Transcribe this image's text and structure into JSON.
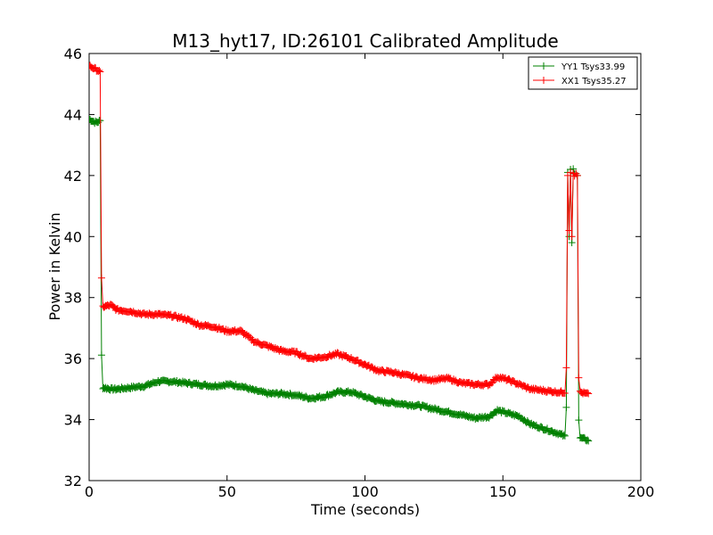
{
  "chart_data": {
    "type": "line",
    "title": "M13_hyt17, ID:26101 Calibrated Amplitude",
    "xlabel": "Time (seconds)",
    "ylabel": "Power in Kelvin",
    "xlim": [
      0,
      200
    ],
    "ylim": [
      32,
      46
    ],
    "x_ticks": [
      "0",
      "50",
      "100",
      "150",
      "200"
    ],
    "y_ticks": [
      "32",
      "34",
      "36",
      "38",
      "40",
      "42",
      "44",
      "46"
    ],
    "grid": false,
    "legend_position": "top-right",
    "colors": {
      "yy1": "#008000",
      "xx1": "#ff0000"
    },
    "series": [
      {
        "name": "YY1 Tsys33.99",
        "color": "#008000",
        "points": [
          [
            0,
            43.85
          ],
          [
            1,
            43.8
          ],
          [
            2,
            43.75
          ],
          [
            3,
            43.75
          ],
          [
            4,
            43.8
          ],
          [
            4.5,
            36.1
          ],
          [
            5,
            35.05
          ],
          [
            8,
            35.0
          ],
          [
            10,
            35.0
          ],
          [
            15,
            35.05
          ],
          [
            20,
            35.1
          ],
          [
            25,
            35.25
          ],
          [
            30,
            35.25
          ],
          [
            35,
            35.2
          ],
          [
            40,
            35.15
          ],
          [
            45,
            35.1
          ],
          [
            50,
            35.15
          ],
          [
            55,
            35.1
          ],
          [
            60,
            34.95
          ],
          [
            65,
            34.85
          ],
          [
            70,
            34.85
          ],
          [
            75,
            34.8
          ],
          [
            80,
            34.7
          ],
          [
            85,
            34.75
          ],
          [
            90,
            34.9
          ],
          [
            95,
            34.9
          ],
          [
            100,
            34.75
          ],
          [
            105,
            34.6
          ],
          [
            110,
            34.55
          ],
          [
            115,
            34.5
          ],
          [
            120,
            34.45
          ],
          [
            125,
            34.35
          ],
          [
            130,
            34.25
          ],
          [
            135,
            34.15
          ],
          [
            140,
            34.05
          ],
          [
            145,
            34.1
          ],
          [
            148,
            34.3
          ],
          [
            152,
            34.2
          ],
          [
            156,
            34.1
          ],
          [
            160,
            33.85
          ],
          [
            165,
            33.7
          ],
          [
            170,
            33.55
          ],
          [
            172.5,
            33.45
          ],
          [
            173,
            34.4
          ],
          [
            173.5,
            42.1
          ],
          [
            174,
            40.0
          ],
          [
            174.5,
            42.2
          ],
          [
            175,
            39.8
          ],
          [
            175.5,
            42.2
          ],
          [
            176,
            42.1
          ],
          [
            176.5,
            42.1
          ],
          [
            177,
            42.0
          ],
          [
            177.5,
            34.0
          ],
          [
            178,
            33.4
          ],
          [
            180,
            33.35
          ],
          [
            181,
            33.3
          ]
        ]
      },
      {
        "name": "XX1 Tsys35.27",
        "color": "#ff0000",
        "points": [
          [
            0,
            45.6
          ],
          [
            1,
            45.55
          ],
          [
            2,
            45.5
          ],
          [
            3,
            45.45
          ],
          [
            4,
            45.4
          ],
          [
            4.5,
            38.6
          ],
          [
            5,
            37.7
          ],
          [
            8,
            37.75
          ],
          [
            10,
            37.6
          ],
          [
            15,
            37.55
          ],
          [
            20,
            37.45
          ],
          [
            25,
            37.45
          ],
          [
            30,
            37.4
          ],
          [
            35,
            37.3
          ],
          [
            40,
            37.1
          ],
          [
            45,
            37.05
          ],
          [
            50,
            36.9
          ],
          [
            55,
            36.9
          ],
          [
            60,
            36.55
          ],
          [
            65,
            36.4
          ],
          [
            70,
            36.25
          ],
          [
            75,
            36.2
          ],
          [
            80,
            36.0
          ],
          [
            85,
            36.05
          ],
          [
            90,
            36.15
          ],
          [
            95,
            36.0
          ],
          [
            100,
            35.8
          ],
          [
            105,
            35.6
          ],
          [
            110,
            35.55
          ],
          [
            115,
            35.45
          ],
          [
            120,
            35.35
          ],
          [
            125,
            35.3
          ],
          [
            130,
            35.35
          ],
          [
            135,
            35.2
          ],
          [
            140,
            35.15
          ],
          [
            145,
            35.15
          ],
          [
            148,
            35.4
          ],
          [
            152,
            35.3
          ],
          [
            156,
            35.15
          ],
          [
            160,
            35.0
          ],
          [
            165,
            34.95
          ],
          [
            170,
            34.9
          ],
          [
            172.5,
            34.9
          ],
          [
            173,
            35.7
          ],
          [
            173.5,
            42.0
          ],
          [
            174,
            40.2
          ],
          [
            174.5,
            42.1
          ],
          [
            175,
            40.0
          ],
          [
            175.5,
            42.1
          ],
          [
            176,
            42.0
          ],
          [
            176.5,
            42.1
          ],
          [
            177,
            42.0
          ],
          [
            177.5,
            35.4
          ],
          [
            178,
            34.9
          ],
          [
            180,
            34.85
          ],
          [
            181,
            34.85
          ]
        ]
      }
    ]
  }
}
